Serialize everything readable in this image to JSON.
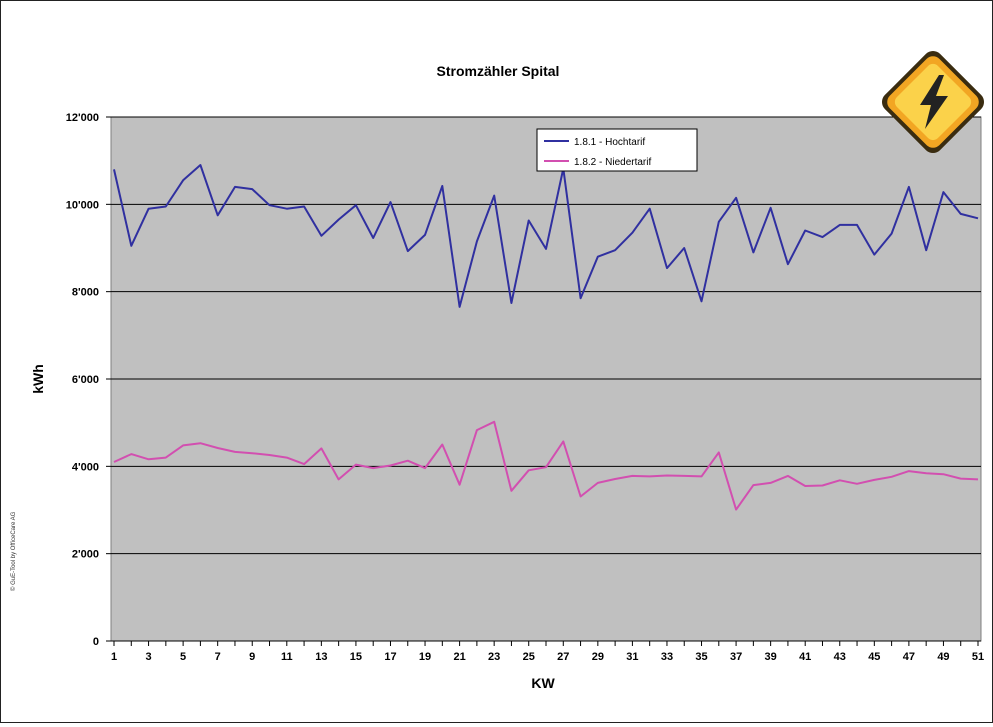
{
  "chart_data": {
    "type": "line",
    "title": "Stromzähler Spital",
    "xlabel": "KW",
    "ylabel": "kWh",
    "ylim": [
      0,
      12000
    ],
    "y_ticks": [
      0,
      2000,
      4000,
      6000,
      8000,
      10000,
      12000
    ],
    "y_tick_labels": [
      "0",
      "2'000",
      "4'000",
      "6'000",
      "8'000",
      "10'000",
      "12'000"
    ],
    "x": [
      1,
      2,
      3,
      4,
      5,
      6,
      7,
      8,
      9,
      10,
      11,
      12,
      13,
      14,
      15,
      16,
      17,
      18,
      19,
      20,
      21,
      22,
      23,
      24,
      25,
      26,
      27,
      28,
      29,
      30,
      31,
      32,
      33,
      34,
      35,
      36,
      37,
      38,
      39,
      40,
      41,
      42,
      43,
      44,
      45,
      46,
      47,
      48,
      49,
      50,
      51
    ],
    "x_tick_labels": [
      "1",
      "3",
      "5",
      "7",
      "9",
      "11",
      "13",
      "15",
      "17",
      "19",
      "21",
      "23",
      "25",
      "27",
      "29",
      "31",
      "33",
      "35",
      "37",
      "39",
      "41",
      "43",
      "45",
      "47",
      "49",
      "51"
    ],
    "grid": true,
    "legend_position": "top-right",
    "series": [
      {
        "name": "1.8.1 - Hochtarif",
        "color": "#3030a0",
        "values": [
          10800,
          9050,
          9900,
          9950,
          10550,
          10900,
          9750,
          10400,
          10350,
          9980,
          9900,
          9950,
          9280,
          9650,
          9980,
          9230,
          10050,
          8930,
          9300,
          10420,
          7650,
          9150,
          10200,
          7740,
          9630,
          8980,
          10820,
          7850,
          8800,
          8950,
          9350,
          9900,
          8540,
          9000,
          7780,
          9600,
          10150,
          8900,
          9920,
          8630,
          9400,
          9250,
          9530,
          9530,
          8850,
          9330,
          10400,
          8950,
          10280,
          9780,
          9680
        ]
      },
      {
        "name": "1.8.2 - Niedertarif",
        "color": "#d24fb0",
        "values": [
          4100,
          4280,
          4160,
          4200,
          4480,
          4530,
          4420,
          4330,
          4300,
          4260,
          4200,
          4050,
          4410,
          3700,
          4040,
          3960,
          4020,
          4130,
          3960,
          4500,
          3580,
          4830,
          5020,
          3440,
          3910,
          3980,
          4570,
          3310,
          3620,
          3710,
          3780,
          3770,
          3790,
          3780,
          3770,
          4320,
          3010,
          3570,
          3620,
          3780,
          3550,
          3560,
          3680,
          3600,
          3690,
          3760,
          3890,
          3840,
          3820,
          3720,
          3700
        ]
      }
    ]
  },
  "credit_text": "© GuE-Tool by OfficeCare AG",
  "warning_icon": "high-voltage-warning-icon"
}
